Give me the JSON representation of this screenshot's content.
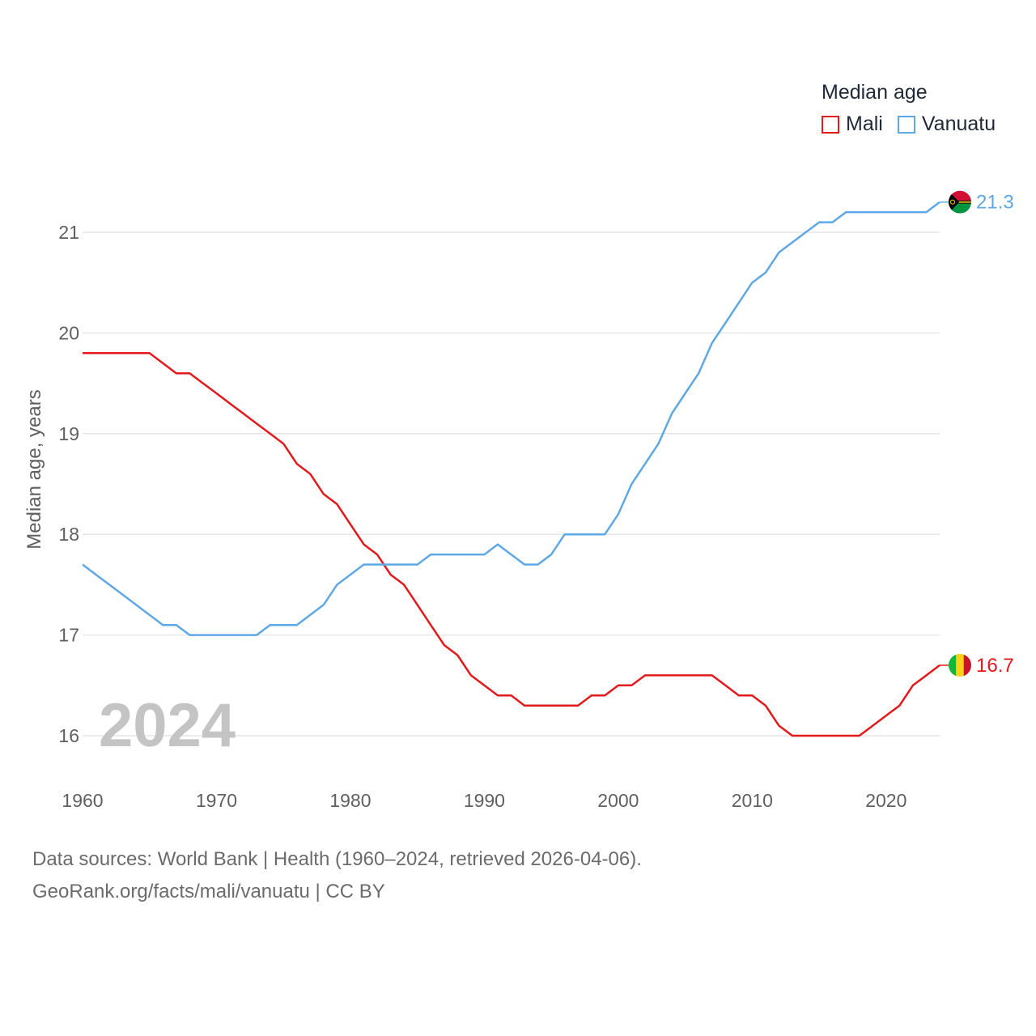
{
  "legend": {
    "title": "Median age",
    "items": [
      {
        "name": "Mali",
        "color": "#e31a1c"
      },
      {
        "name": "Vanuatu",
        "color": "#5fa8e6"
      }
    ]
  },
  "footer": {
    "line1": "Data sources: World Bank | Health (1960–2024, retrieved 2026-04-06).",
    "line2": "GeoRank.org/facts/mali/vanuatu | CC BY"
  },
  "chart_data": {
    "type": "line",
    "title": "Median age",
    "xlabel": "",
    "ylabel": "Median age, years",
    "xlim": [
      1960,
      2024
    ],
    "ylim": [
      15.5,
      21.6
    ],
    "xticks": [
      1960,
      1970,
      1980,
      1990,
      2000,
      2010,
      2020
    ],
    "yticks": [
      16,
      17,
      18,
      19,
      20,
      21
    ],
    "highlight_year": "2024",
    "x": [
      1960,
      1961,
      1962,
      1963,
      1964,
      1965,
      1966,
      1967,
      1968,
      1969,
      1970,
      1971,
      1972,
      1973,
      1974,
      1975,
      1976,
      1977,
      1978,
      1979,
      1980,
      1981,
      1982,
      1983,
      1984,
      1985,
      1986,
      1987,
      1988,
      1989,
      1990,
      1991,
      1992,
      1993,
      1994,
      1995,
      1996,
      1997,
      1998,
      1999,
      2000,
      2001,
      2002,
      2003,
      2004,
      2005,
      2006,
      2007,
      2008,
      2009,
      2010,
      2011,
      2012,
      2013,
      2014,
      2015,
      2016,
      2017,
      2018,
      2019,
      2020,
      2021,
      2022,
      2023,
      2024
    ],
    "series": [
      {
        "name": "Mali",
        "color": "#e31a1c",
        "end_label": "16.7",
        "values": [
          19.8,
          19.8,
          19.8,
          19.8,
          19.8,
          19.8,
          19.7,
          19.6,
          19.6,
          19.5,
          19.4,
          19.3,
          19.2,
          19.1,
          19.0,
          18.9,
          18.7,
          18.6,
          18.4,
          18.3,
          18.1,
          17.9,
          17.8,
          17.6,
          17.5,
          17.3,
          17.1,
          16.9,
          16.8,
          16.6,
          16.5,
          16.4,
          16.4,
          16.3,
          16.3,
          16.3,
          16.3,
          16.3,
          16.4,
          16.4,
          16.5,
          16.5,
          16.6,
          16.6,
          16.6,
          16.6,
          16.6,
          16.6,
          16.5,
          16.4,
          16.4,
          16.3,
          16.1,
          16.0,
          16.0,
          16.0,
          16.0,
          16.0,
          16.0,
          16.1,
          16.2,
          16.3,
          16.5,
          16.6,
          16.7
        ]
      },
      {
        "name": "Vanuatu",
        "color": "#5fa8e6",
        "end_label": "21.3",
        "values": [
          17.7,
          17.6,
          17.5,
          17.4,
          17.3,
          17.2,
          17.1,
          17.1,
          17.0,
          17.0,
          17.0,
          17.0,
          17.0,
          17.0,
          17.1,
          17.1,
          17.1,
          17.2,
          17.3,
          17.5,
          17.6,
          17.7,
          17.7,
          17.7,
          17.7,
          17.7,
          17.8,
          17.8,
          17.8,
          17.8,
          17.8,
          17.9,
          17.8,
          17.7,
          17.7,
          17.8,
          18.0,
          18.0,
          18.0,
          18.0,
          18.2,
          18.5,
          18.7,
          18.9,
          19.2,
          19.4,
          19.6,
          19.9,
          20.1,
          20.3,
          20.5,
          20.6,
          20.8,
          20.9,
          21.0,
          21.1,
          21.1,
          21.2,
          21.2,
          21.2,
          21.2,
          21.2,
          21.2,
          21.2,
          21.3
        ]
      }
    ]
  }
}
